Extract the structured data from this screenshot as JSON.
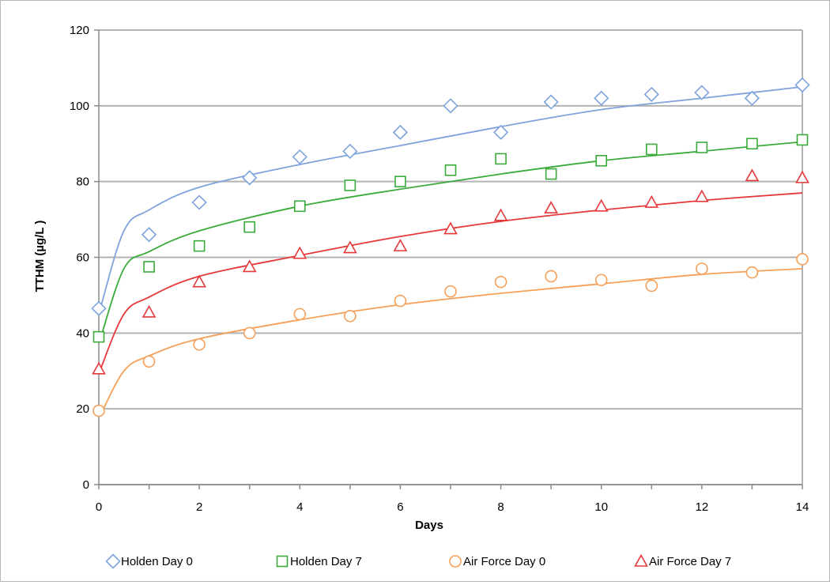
{
  "chart_data": {
    "type": "scatter",
    "title": "",
    "xlabel": "Days",
    "ylabel": "TTHM (µg/L )",
    "xlim": [
      0,
      14
    ],
    "ylim": [
      0,
      120
    ],
    "x_ticks": [
      0,
      2,
      4,
      6,
      8,
      10,
      12,
      14
    ],
    "y_ticks": [
      0,
      20,
      40,
      60,
      80,
      100,
      120
    ],
    "x_tick_labels": [
      "0",
      "2",
      "4",
      "6",
      "8",
      "10",
      "12",
      "14"
    ],
    "y_tick_labels": [
      "0",
      "20",
      "40",
      "60",
      "80",
      "100",
      "120"
    ],
    "grid": "horizontal",
    "legend": "bottom",
    "series": [
      {
        "name": "Holden Day 0",
        "marker": "diamond",
        "color": "#7fa3dc",
        "x": [
          0,
          1,
          2,
          3,
          4,
          5,
          6,
          7,
          8,
          9,
          10,
          11,
          12,
          13,
          14
        ],
        "y": [
          46.5,
          66,
          74.5,
          81,
          86.5,
          88,
          93,
          100,
          93,
          101,
          102,
          103,
          103.5,
          102,
          105.5
        ],
        "trend": {
          "type": "log",
          "points": [
            [
              0.02,
              46
            ],
            [
              0.5,
              67
            ],
            [
              1,
              72.5
            ],
            [
              2,
              78.5
            ],
            [
              4,
              84.5
            ],
            [
              6,
              89.5
            ],
            [
              8,
              94.5
            ],
            [
              10,
              99
            ],
            [
              12,
              102
            ],
            [
              14,
              105
            ]
          ]
        }
      },
      {
        "name": "Holden Day 7",
        "marker": "square",
        "color": "#3aaa3a",
        "x": [
          0,
          1,
          2,
          3,
          4,
          5,
          6,
          7,
          8,
          9,
          10,
          11,
          12,
          13,
          14
        ],
        "y": [
          39,
          57.5,
          63,
          68,
          73.5,
          79,
          80,
          83,
          86,
          82,
          85.5,
          88.5,
          89,
          90,
          91
        ],
        "trend": {
          "type": "log",
          "points": [
            [
              0.02,
              38
            ],
            [
              0.5,
              57
            ],
            [
              1,
              61.5
            ],
            [
              2,
              67
            ],
            [
              4,
              73.5
            ],
            [
              6,
              78
            ],
            [
              8,
              82
            ],
            [
              10,
              85.5
            ],
            [
              12,
              88
            ],
            [
              14,
              90.5
            ]
          ]
        }
      },
      {
        "name": "Air Force Day 0",
        "marker": "circle",
        "color": "#f5a05a",
        "x": [
          0,
          1,
          2,
          3,
          4,
          5,
          6,
          7,
          8,
          9,
          10,
          11,
          12,
          13,
          14
        ],
        "y": [
          19.5,
          32.5,
          37,
          40,
          45,
          44.5,
          48.5,
          51,
          53.5,
          55,
          54,
          52.5,
          57,
          56,
          59.5
        ],
        "trend": {
          "type": "log",
          "points": [
            [
              0.02,
              18
            ],
            [
              0.5,
              30
            ],
            [
              1,
              34
            ],
            [
              2,
              38.5
            ],
            [
              4,
              43.5
            ],
            [
              6,
              47.5
            ],
            [
              8,
              50.5
            ],
            [
              10,
              53
            ],
            [
              12,
              55.5
            ],
            [
              14,
              57
            ]
          ]
        }
      },
      {
        "name": "Air Force Day 7",
        "marker": "triangle",
        "color": "#e6383a",
        "x": [
          0,
          1,
          2,
          3,
          4,
          5,
          6,
          7,
          8,
          9,
          10,
          11,
          12,
          13,
          14
        ],
        "y": [
          30.5,
          45.5,
          53.5,
          57.5,
          61,
          62.5,
          63,
          67.5,
          71,
          73,
          73.5,
          74.5,
          76,
          81.5,
          81
        ],
        "trend": {
          "type": "log",
          "points": [
            [
              0.02,
              30
            ],
            [
              0.5,
              45
            ],
            [
              1,
              49.5
            ],
            [
              2,
              55
            ],
            [
              4,
              60.5
            ],
            [
              6,
              65.5
            ],
            [
              8,
              69.5
            ],
            [
              10,
              72.5
            ],
            [
              12,
              75
            ],
            [
              14,
              77
            ]
          ]
        }
      }
    ]
  }
}
